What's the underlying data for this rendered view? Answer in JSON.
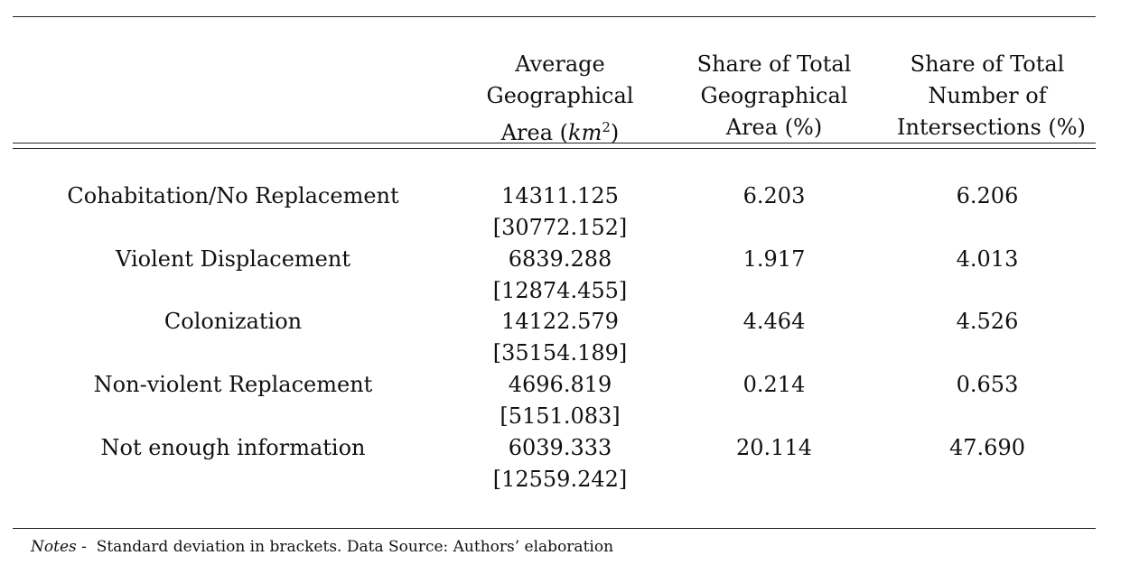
{
  "table": {
    "headers": {
      "avg_area": {
        "line1": "Average",
        "line2": "Geographical",
        "line3_prefix": "Area (",
        "unit_km": "km",
        "unit_exp": "2",
        "line3_suffix": ")"
      },
      "share_area": {
        "line1": "Share of Total",
        "line2": "Geographical",
        "line3": "Area (%)"
      },
      "share_intersections": {
        "line1": "Share of Total",
        "line2": "Number of",
        "line3": "Intersections (%)"
      }
    },
    "rows": [
      {
        "label": "Cohabitation/No Replacement",
        "avg_area": "14311.125",
        "avg_area_sd": "[30772.152]",
        "share_area": "6.203",
        "share_intersections": "6.206"
      },
      {
        "label": "Violent Displacement",
        "avg_area": "6839.288",
        "avg_area_sd": "[12874.455]",
        "share_area": "1.917",
        "share_intersections": "4.013"
      },
      {
        "label": "Colonization",
        "avg_area": "14122.579",
        "avg_area_sd": "[35154.189]",
        "share_area": "4.464",
        "share_intersections": "4.526"
      },
      {
        "label": "Non-violent Replacement",
        "avg_area": "4696.819",
        "avg_area_sd": "[5151.083]",
        "share_area": "0.214",
        "share_intersections": "0.653"
      },
      {
        "label": "Not enough information",
        "avg_area": "6039.333",
        "avg_area_sd": "[12559.242]",
        "share_area": "20.114",
        "share_intersections": "47.690"
      }
    ]
  },
  "notes": {
    "label": "Notes",
    "separator": " -  ",
    "text": "Standard deviation in brackets. Data Source: Authors’ elaboration"
  }
}
